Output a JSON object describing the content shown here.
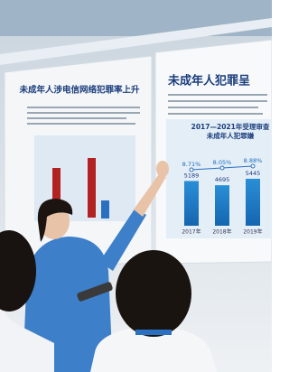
{
  "left_panel": {
    "title": "未成年人涉电信网络犯罪率上升"
  },
  "right_panel": {
    "title": "未成年人犯罪呈",
    "chart_title": [
      "2017—2021年受理审查",
      "未成年人犯罪嫌"
    ],
    "bars": [
      {
        "year": "2017年",
        "value": 5189,
        "rate": "8.71%"
      },
      {
        "year": "2018年",
        "value": 4695,
        "rate": "8.05%"
      },
      {
        "year": "2019年",
        "value": 5445,
        "rate": "8.88%"
      }
    ]
  }
}
